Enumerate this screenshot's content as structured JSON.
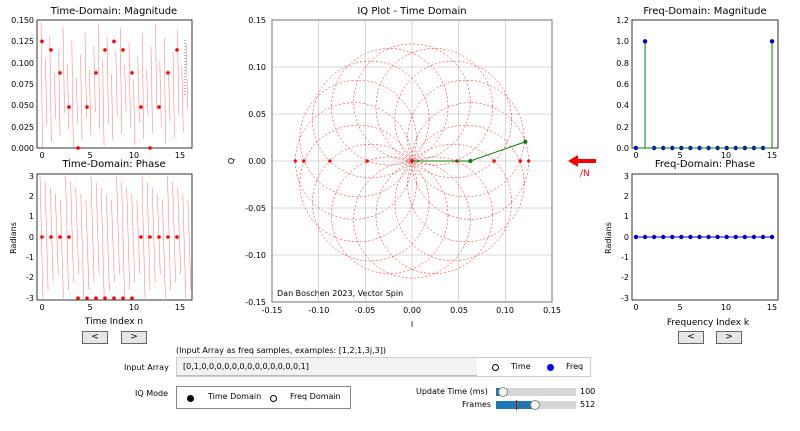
{
  "plots": {
    "time_mag": {
      "title": "Time-Domain: Magnitude",
      "yticks": [
        "0.150",
        "0.125",
        "0.100",
        "0.075",
        "0.050",
        "0.025",
        "0.000"
      ],
      "xticks": [
        "0",
        "5",
        "10",
        "15"
      ],
      "ylim": [
        0,
        0.15
      ],
      "xlim": [
        -0.3,
        16
      ]
    },
    "time_phase": {
      "title": "Time-Domain: Phase",
      "ylabel": "Radians",
      "xlabel": "Time Index n",
      "yticks": [
        "3",
        "2",
        "1",
        "0",
        "-1",
        "-2",
        "-3"
      ],
      "xticks": [
        "0",
        "5",
        "10",
        "15"
      ]
    },
    "iq": {
      "title": "IQ Plot - Time Domain",
      "ylabel": "Q",
      "xlabel": "I",
      "yticks": [
        "0.15",
        "0.10",
        "0.05",
        "0.00",
        "-0.05",
        "-0.10",
        "-0.15"
      ],
      "xticks": [
        "-0.15",
        "-0.10",
        "-0.05",
        "0.00",
        "0.05",
        "0.10",
        "0.15"
      ],
      "credit": "Dan Boschen 2023, Vector Spin"
    },
    "freq_mag": {
      "title": "Freq-Domain: Magnitude",
      "yticks": [
        "1.2",
        "1.0",
        "0.8",
        "0.6",
        "0.4",
        "0.2",
        "0.0"
      ],
      "xticks": [
        "0",
        "5",
        "10",
        "15"
      ]
    },
    "freq_phase": {
      "title": "Freq-Domain: Phase",
      "ylabel": "Radians",
      "xlabel": "Frequency Index k",
      "yticks": [
        "3",
        "2",
        "1",
        "0",
        "-1",
        "-2",
        "-3"
      ],
      "xticks": [
        "0",
        "5",
        "10",
        "15"
      ]
    }
  },
  "chart_data": [
    {
      "type": "scatter",
      "title": "Time-Domain: Magnitude",
      "x": [
        0,
        1,
        2,
        3,
        4,
        5,
        6,
        7,
        8,
        9,
        10,
        11,
        12,
        13,
        14,
        15
      ],
      "values": [
        0.125,
        0.115,
        0.088,
        0.048,
        0.0,
        0.048,
        0.088,
        0.115,
        0.125,
        0.115,
        0.088,
        0.048,
        0.0,
        0.048,
        0.088,
        0.115
      ],
      "ylim": [
        0,
        0.15
      ]
    },
    {
      "type": "scatter",
      "title": "Time-Domain: Phase",
      "ylabel": "Radians",
      "xlabel": "Time Index n",
      "x": [
        0,
        1,
        2,
        3,
        4,
        5,
        6,
        7,
        8,
        9,
        10,
        11,
        12,
        13,
        14,
        15
      ],
      "values": [
        0,
        0,
        0,
        0,
        -3.1,
        -3.1,
        -3.1,
        -3.1,
        -3.1,
        -3.1,
        -3.1,
        0,
        0,
        0,
        0,
        0
      ],
      "ylim": [
        -3.1416,
        3.1416
      ]
    },
    {
      "type": "scatter",
      "title": "IQ Plot - Time Domain",
      "xlabel": "I",
      "ylabel": "Q",
      "x": [
        0.125,
        0.116,
        0.088,
        0.048,
        0.0,
        -0.048,
        -0.088,
        -0.116,
        -0.125,
        -0.116,
        -0.088,
        -0.048,
        0.0,
        0.048,
        0.088,
        0.116
      ],
      "values": [
        0,
        0,
        0,
        0,
        0,
        0,
        0,
        0,
        0,
        0,
        0,
        0,
        0,
        0,
        0,
        0
      ],
      "vector_x": [
        0,
        0.0625,
        0.1215
      ],
      "vector_y": [
        0,
        0.0,
        0.0205
      ],
      "xlim": [
        -0.15,
        0.15
      ],
      "ylim": [
        -0.15,
        0.15
      ]
    },
    {
      "type": "scatter",
      "title": "Freq-Domain: Magnitude",
      "x": [
        0,
        1,
        2,
        3,
        4,
        5,
        6,
        7,
        8,
        9,
        10,
        11,
        12,
        13,
        14,
        15
      ],
      "values": [
        0,
        1,
        0,
        0,
        0,
        0,
        0,
        0,
        0,
        0,
        0,
        0,
        0,
        0,
        0,
        1
      ],
      "ylim": [
        0,
        1.2
      ]
    },
    {
      "type": "scatter",
      "title": "Freq-Domain: Phase",
      "ylabel": "Radians",
      "xlabel": "Frequency Index k",
      "x": [
        0,
        1,
        2,
        3,
        4,
        5,
        6,
        7,
        8,
        9,
        10,
        11,
        12,
        13,
        14,
        15
      ],
      "values": [
        0,
        0,
        0,
        0,
        0,
        0,
        0,
        0,
        0,
        0,
        0,
        0,
        0,
        0,
        0,
        0
      ],
      "ylim": [
        -3.1416,
        3.1416
      ]
    }
  ],
  "arrow_label": "/N",
  "controls": {
    "prev_label": "<",
    "next_label": ">",
    "hint": "(Input Array as freq samples, examples: [1,2,1,3j,3])",
    "input_label": "Input Array",
    "input_value": "[0,1,0,0,0,0,0,0,0,0,0,0,0,0,0,1]",
    "radio_time": "Time",
    "radio_freq": "Freq",
    "iq_mode_label": "IQ Mode",
    "iq_time_domain": "Time Domain",
    "iq_freq_domain": "Freq Domain",
    "update_label": "Update Time (ms)",
    "update_value": "100",
    "update_fraction": 0.09,
    "frames_label": "Frames",
    "frames_value": "512",
    "frames_fraction": 0.49
  },
  "colors": {
    "red": "#ff0000",
    "blue": "#0000cc",
    "green": "#008000",
    "slider": "#1f77b4"
  }
}
